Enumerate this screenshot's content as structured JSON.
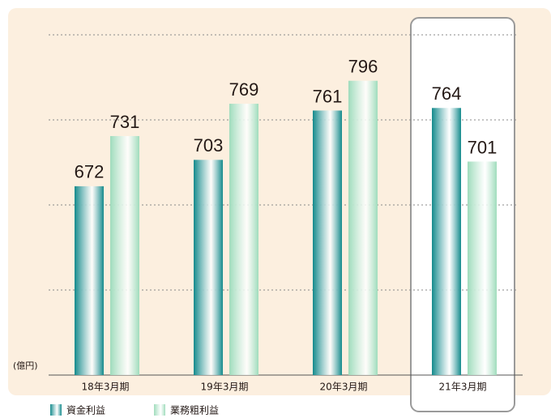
{
  "chart_data": {
    "type": "bar",
    "unit_label": "(億円)",
    "categories": [
      "18年3月期",
      "19年3月期",
      "20年3月期",
      "21年3月期"
    ],
    "series": [
      {
        "name": "資金利益",
        "color": "#138a8c",
        "values": [
          672,
          703,
          761,
          764
        ]
      },
      {
        "name": "業務粗利益",
        "color": "#9fdcbc",
        "values": [
          731,
          769,
          796,
          701
        ]
      }
    ],
    "ylim": [
      450,
      880
    ],
    "yticks": [
      550,
      650,
      750,
      850
    ],
    "grid": true
  }
}
